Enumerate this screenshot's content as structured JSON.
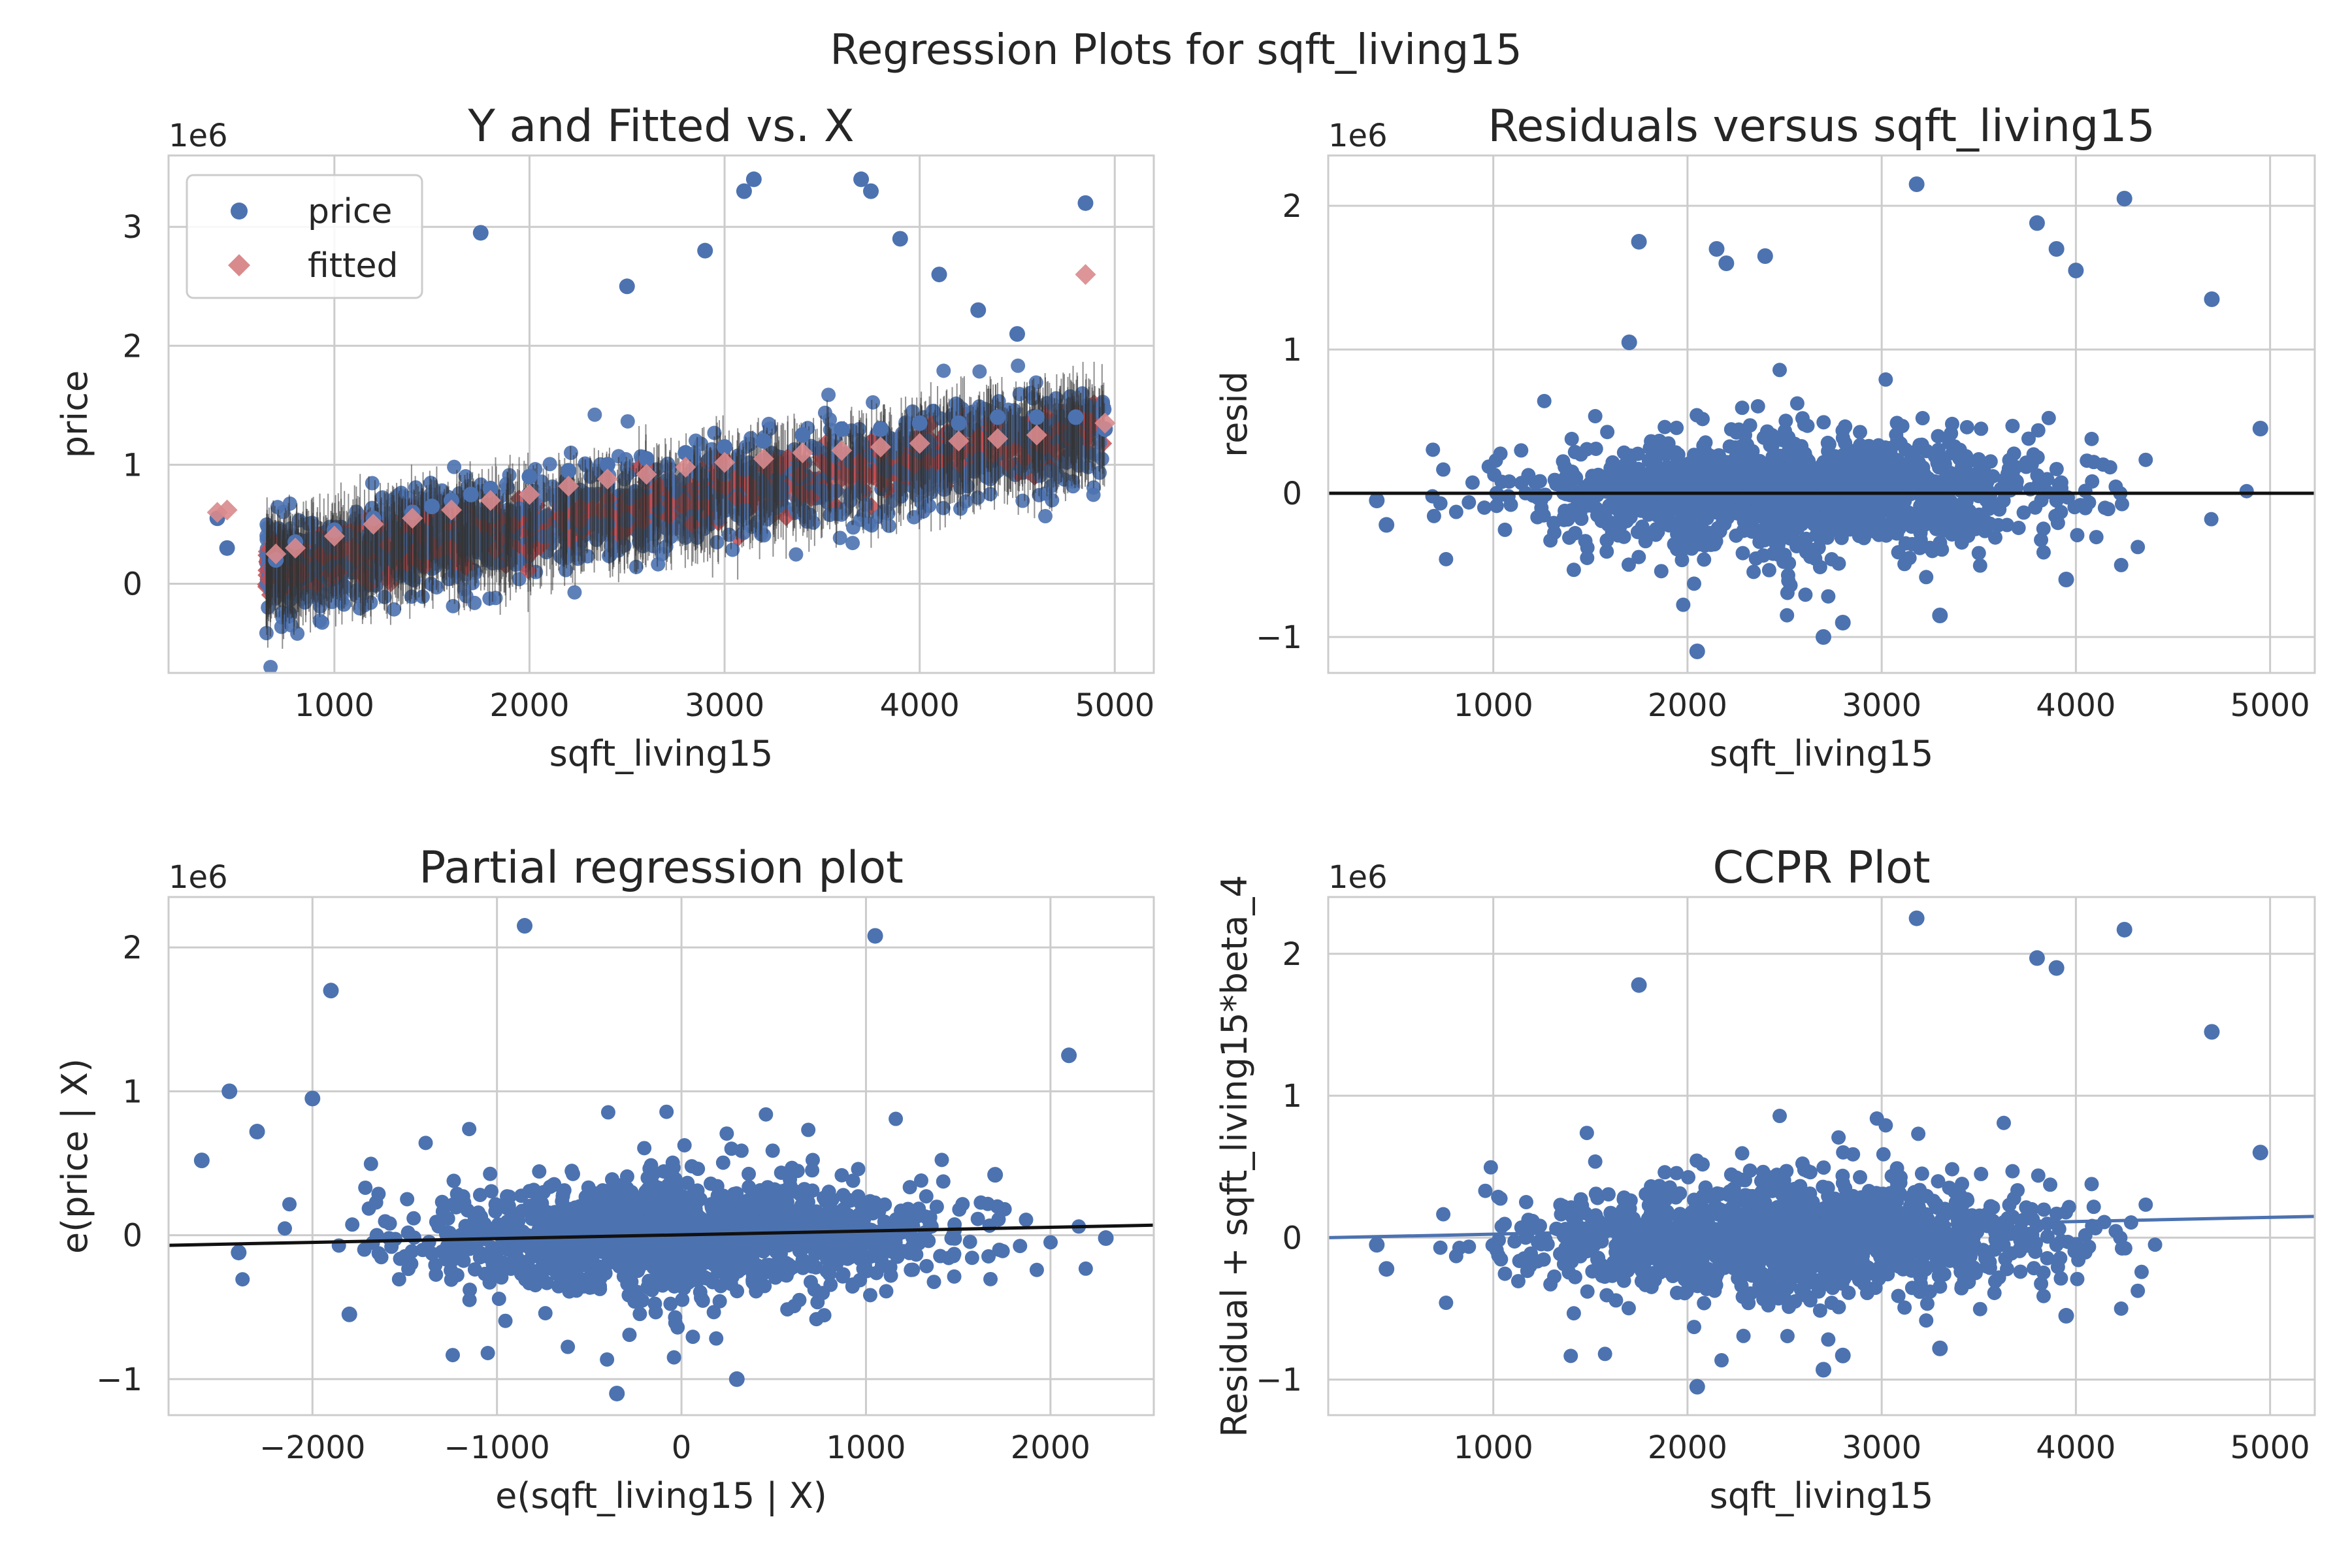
{
  "title": "Regression Plots for sqft_living15",
  "colors": {
    "price": "#4c72b0",
    "fitted": "#c44e52",
    "fitted_marker": "#d98a8d",
    "line": "#111111",
    "ccpr_line": "#4c72b0",
    "grid": "#cccccc",
    "spine": "#cccccc"
  },
  "chart_data": [
    {
      "type": "scatter",
      "title": "Y and Fitted vs. X",
      "xlabel": "sqft_living15",
      "ylabel": "price",
      "offset_label": "1e6",
      "xlim": [
        150,
        5200
      ],
      "ylim": [
        -0.75,
        3.6
      ],
      "xticks": [
        1000,
        2000,
        3000,
        4000,
        5000
      ],
      "xtick_labels": [
        "1000",
        "2000",
        "3000",
        "4000",
        "5000"
      ],
      "yticks": [
        0,
        1,
        2,
        3
      ],
      "ytick_labels": [
        "0",
        "1",
        "2",
        "3"
      ],
      "legend": {
        "placement": "top-left",
        "entries": [
          "price",
          "fitted"
        ]
      },
      "series": [
        {
          "name": "price",
          "marker": "circle",
          "x": [
            400,
            450,
            700,
            800,
            1000,
            1200,
            1400,
            1500,
            1600,
            1700,
            1800,
            2000,
            2200,
            2400,
            2600,
            2800,
            3000,
            3200,
            3400,
            3600,
            3800,
            4000,
            4200,
            4400,
            4600,
            4800,
            4950,
            1750,
            2500,
            3100,
            3150,
            3700,
            3750,
            4850,
            2900,
            3900,
            4100,
            4300,
            4500
          ],
          "y": [
            0.55,
            0.3,
            0.2,
            0.35,
            0.45,
            0.55,
            0.6,
            0.65,
            0.7,
            0.75,
            0.8,
            0.9,
            0.95,
            1.0,
            1.05,
            1.1,
            1.15,
            1.2,
            1.25,
            1.3,
            1.3,
            1.35,
            1.35,
            1.4,
            1.4,
            1.4,
            1.3,
            2.95,
            2.5,
            3.3,
            3.4,
            3.4,
            3.3,
            3.2,
            2.8,
            2.9,
            2.6,
            2.3,
            2.1
          ]
        },
        {
          "name": "fitted",
          "marker": "diamond",
          "x": [
            400,
            450,
            700,
            800,
            1000,
            1200,
            1400,
            1600,
            1800,
            2000,
            2200,
            2400,
            2600,
            2800,
            3000,
            3200,
            3400,
            3600,
            3800,
            4000,
            4200,
            4400,
            4600,
            4850,
            4950
          ],
          "y": [
            0.6,
            0.62,
            0.25,
            0.3,
            0.4,
            0.5,
            0.55,
            0.62,
            0.7,
            0.75,
            0.82,
            0.88,
            0.92,
            0.98,
            1.02,
            1.05,
            1.1,
            1.12,
            1.15,
            1.18,
            1.2,
            1.22,
            1.25,
            2.6,
            1.35
          ]
        }
      ]
    },
    {
      "type": "scatter",
      "title": "Residuals versus sqft_living15",
      "xlabel": "sqft_living15",
      "ylabel": "resid",
      "offset_label": "1e6",
      "xlim": [
        150,
        5230
      ],
      "ylim": [
        -1.25,
        2.35
      ],
      "xticks": [
        1000,
        2000,
        3000,
        4000,
        5000
      ],
      "xtick_labels": [
        "1000",
        "2000",
        "3000",
        "4000",
        "5000"
      ],
      "yticks": [
        -1,
        0,
        1,
        2
      ],
      "ytick_labels": [
        "−1",
        "0",
        "1",
        "2"
      ],
      "series": [
        {
          "name": "",
          "marker": "circle",
          "x": [
            400,
            450,
            1750,
            2050,
            3180,
            4250,
            3800,
            4000,
            3900,
            2700,
            2800,
            3300,
            2150,
            4700,
            4950,
            3950,
            2400,
            2200,
            1700
          ],
          "y": [
            -0.05,
            -0.22,
            1.75,
            -1.1,
            2.15,
            2.05,
            1.88,
            1.55,
            1.7,
            -1.0,
            -0.9,
            -0.85,
            1.7,
            1.35,
            0.45,
            -0.6,
            1.65,
            1.6,
            1.05
          ]
        }
      ],
      "reference_line": {
        "y": 0
      }
    },
    {
      "type": "scatter",
      "title": "Partial regression plot",
      "xlabel": "e(sqft_living15 | X)",
      "ylabel": "e(price | X)",
      "offset_label": "1e6",
      "xlim": [
        -2780,
        2560
      ],
      "ylim": [
        -1.25,
        2.35
      ],
      "xticks": [
        -2000,
        -1000,
        0,
        1000,
        2000
      ],
      "xtick_labels": [
        "−2000",
        "−1000",
        "0",
        "1000",
        "2000"
      ],
      "yticks": [
        -1,
        0,
        1,
        2
      ],
      "ytick_labels": [
        "−1",
        "0",
        "1",
        "2"
      ],
      "series": [
        {
          "name": "",
          "marker": "circle",
          "x": [
            -2600,
            -2450,
            -2400,
            -2300,
            -2000,
            -1900,
            -850,
            1050,
            -350,
            300,
            2100,
            2300,
            1700,
            -1800
          ],
          "y": [
            0.52,
            1.0,
            -0.12,
            0.72,
            0.95,
            1.7,
            2.15,
            2.08,
            -1.1,
            -1.0,
            1.25,
            -0.02,
            0.42,
            -0.55
          ]
        }
      ],
      "fit_line": {
        "x": [
          -2780,
          2560
        ],
        "y": [
          -0.07,
          0.07
        ]
      }
    },
    {
      "type": "scatter",
      "title": "CCPR Plot",
      "xlabel": "sqft_living15",
      "ylabel": "Residual + sqft_living15*beta_4",
      "offset_label": "1e6",
      "xlim": [
        150,
        5230
      ],
      "ylim": [
        -1.25,
        2.4
      ],
      "xticks": [
        1000,
        2000,
        3000,
        4000,
        5000
      ],
      "xtick_labels": [
        "1000",
        "2000",
        "3000",
        "4000",
        "5000"
      ],
      "yticks": [
        -1,
        0,
        1,
        2
      ],
      "ytick_labels": [
        "−1",
        "0",
        "1",
        "2"
      ],
      "series": [
        {
          "name": "",
          "marker": "circle",
          "x": [
            400,
            450,
            1750,
            2050,
            3180,
            4250,
            3800,
            3900,
            2700,
            2800,
            3300,
            4700,
            4950,
            3950
          ],
          "y": [
            -0.05,
            -0.22,
            1.78,
            -1.05,
            2.25,
            2.17,
            1.97,
            1.9,
            -0.93,
            -0.83,
            -0.78,
            1.45,
            0.6,
            -0.55
          ]
        }
      ],
      "fit_line": {
        "x": [
          150,
          5230
        ],
        "y": [
          0.0,
          0.15
        ]
      }
    }
  ]
}
